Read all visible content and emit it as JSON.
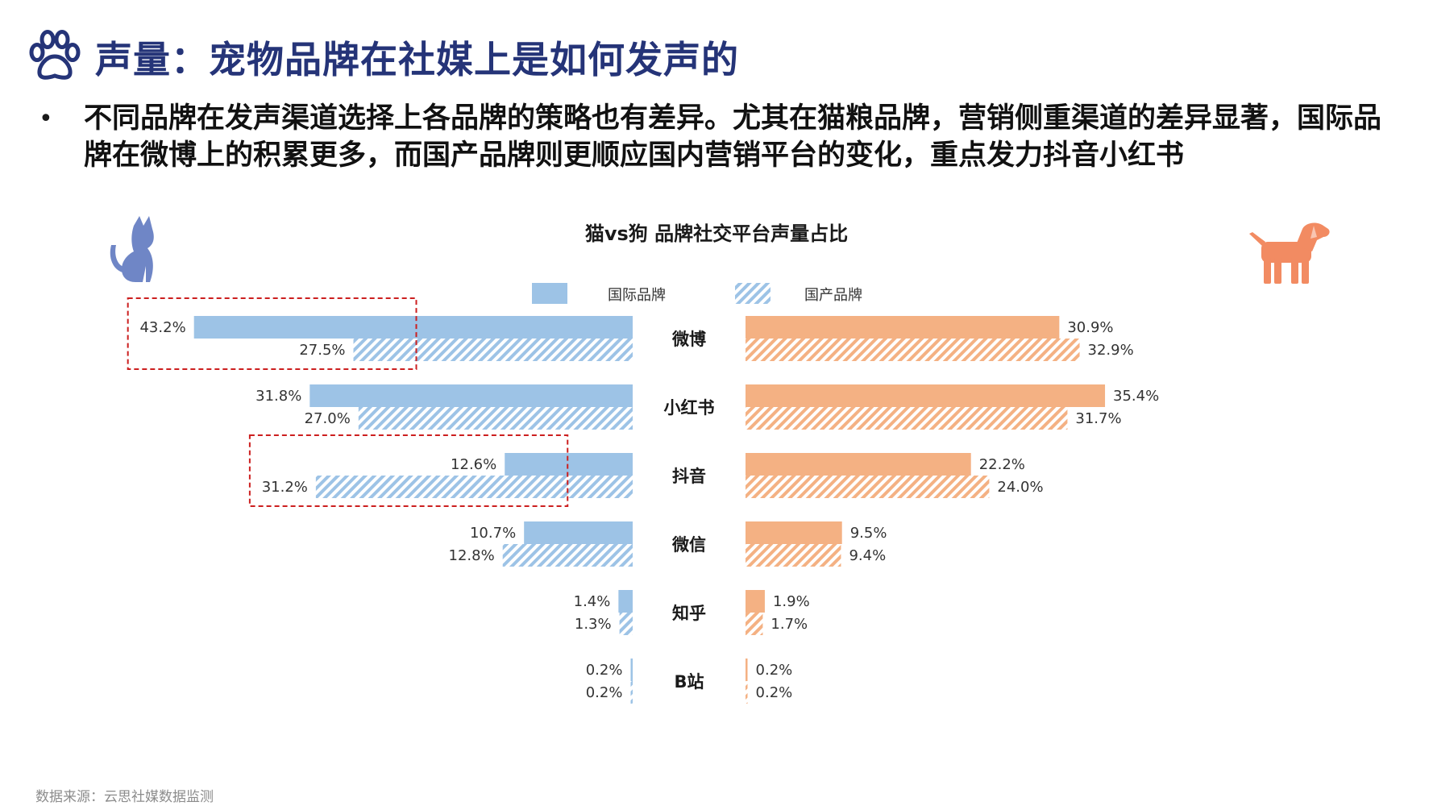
{
  "page": {
    "title": "声量：宠物品牌在社媒上是如何发声的",
    "bullet": "不同品牌在发声渠道选择上各品牌的策略也有差异。尤其在猫粮品牌，营销侧重渠道的差异显著，国际品牌在微博上的积累更多，而国产品牌则更顺应国内营销平台的变化，重点发力抖音小红书",
    "source": "数据来源：云思社媒数据监测",
    "icons": {
      "title": "paw-icon",
      "left": "cat-icon",
      "right": "dog-icon"
    },
    "colors": {
      "title": "#253478",
      "cat": "#9dc3e6",
      "dog": "#f4b183",
      "dog_icon": "#f28b62",
      "cat_icon": "#6f86c6",
      "highlight": "#cc1f1f"
    }
  },
  "chart_data": {
    "type": "bar",
    "title": "猫vs狗 品牌社交平台声量占比",
    "categories": [
      "微博",
      "小红书",
      "抖音",
      "微信",
      "知乎",
      "B站"
    ],
    "legend": [
      "国际品牌",
      "国产品牌"
    ],
    "cat": {
      "series": [
        {
          "name": "国际品牌",
          "values": [
            43.2,
            31.8,
            12.6,
            10.7,
            1.4,
            0.2
          ]
        },
        {
          "name": "国产品牌",
          "values": [
            27.5,
            27.0,
            31.2,
            12.8,
            1.3,
            0.2
          ]
        }
      ]
    },
    "dog": {
      "series": [
        {
          "name": "国际品牌",
          "values": [
            30.9,
            35.4,
            22.2,
            9.5,
            1.9,
            0.2
          ]
        },
        {
          "name": "国产品牌",
          "values": [
            32.9,
            31.7,
            24.0,
            9.4,
            1.7,
            0.2
          ]
        }
      ]
    },
    "highlights": [
      "微博",
      "抖音"
    ],
    "unit": "%",
    "legend_position": "top-center"
  }
}
